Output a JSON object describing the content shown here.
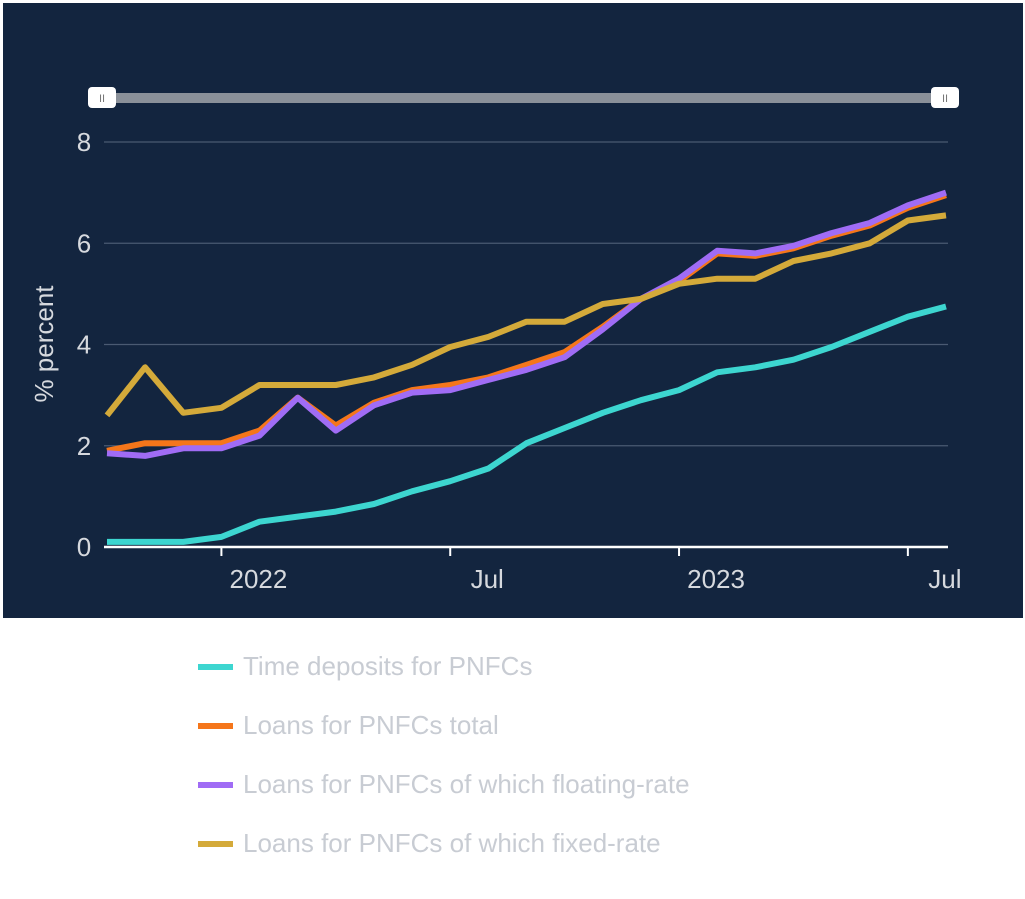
{
  "chart_data": {
    "type": "line",
    "title": "",
    "xlabel": "",
    "ylabel": "% percent",
    "ylim": [
      0,
      8
    ],
    "yticks": [
      "0",
      "2",
      "4",
      "6",
      "8"
    ],
    "xticks": [
      {
        "label": "2022",
        "date": "2022-01"
      },
      {
        "label": "Jul",
        "date": "2022-07"
      },
      {
        "label": "2023",
        "date": "2023-01"
      },
      {
        "label": "Jul",
        "date": "2023-07"
      }
    ],
    "x": [
      "2021-10",
      "2021-11",
      "2021-12",
      "2022-01",
      "2022-02",
      "2022-03",
      "2022-04",
      "2022-05",
      "2022-06",
      "2022-07",
      "2022-08",
      "2022-09",
      "2022-10",
      "2022-11",
      "2022-12",
      "2023-01",
      "2023-02",
      "2023-03",
      "2023-04",
      "2023-05",
      "2023-06",
      "2023-07",
      "2023-08"
    ],
    "grid": true,
    "legend_position": "bottom",
    "series": [
      {
        "name": "Time deposits for PNFCs",
        "color": "#3dd6d0",
        "values": [
          0.1,
          0.1,
          0.1,
          0.2,
          0.5,
          0.6,
          0.7,
          0.85,
          1.1,
          1.3,
          1.55,
          2.05,
          2.35,
          2.65,
          2.9,
          3.1,
          3.45,
          3.55,
          3.7,
          3.95,
          4.25,
          4.55,
          4.75
        ]
      },
      {
        "name": "Loans for PNFCs total",
        "color": "#f5761a",
        "values": [
          1.9,
          2.05,
          2.05,
          2.05,
          2.3,
          2.95,
          2.4,
          2.85,
          3.1,
          3.2,
          3.35,
          3.6,
          3.85,
          4.35,
          4.9,
          5.25,
          5.8,
          5.75,
          5.9,
          6.15,
          6.35,
          6.7,
          6.95
        ]
      },
      {
        "name": "Loans for PNFCs of which floating-rate",
        "color": "#a06cf5",
        "values": [
          1.85,
          1.8,
          1.95,
          1.95,
          2.2,
          2.95,
          2.3,
          2.8,
          3.05,
          3.1,
          3.3,
          3.5,
          3.75,
          4.3,
          4.9,
          5.3,
          5.85,
          5.8,
          5.95,
          6.2,
          6.4,
          6.75,
          7.0
        ]
      },
      {
        "name": "Loans for PNFCs of which fixed-rate",
        "color": "#d4aa3a",
        "values": [
          2.6,
          3.55,
          2.65,
          2.75,
          3.2,
          3.2,
          3.2,
          3.35,
          3.6,
          3.95,
          4.15,
          4.45,
          4.45,
          4.8,
          4.9,
          5.2,
          5.3,
          5.3,
          5.65,
          5.8,
          6.0,
          6.45,
          6.55
        ]
      }
    ]
  },
  "navigator": {
    "left_handle": "II",
    "right_handle": "II"
  }
}
